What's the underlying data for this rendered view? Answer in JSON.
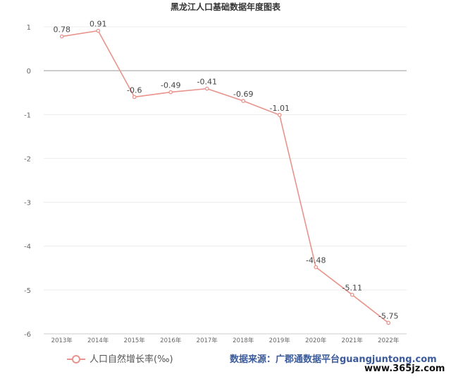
{
  "chart_data": {
    "type": "line",
    "title": "黑龙江人口基础数据年度图表",
    "categories": [
      "2013年",
      "2014年",
      "2015年",
      "2016年",
      "2017年",
      "2018年",
      "2019年",
      "2020年",
      "2021年",
      "2022年"
    ],
    "series": [
      {
        "name": "人口自然增长率(‰)",
        "values": [
          0.78,
          0.91,
          -0.6,
          -0.49,
          -0.41,
          -0.69,
          -1.01,
          -4.48,
          -5.11,
          -5.75
        ],
        "labels": [
          "0.78",
          "0.91",
          "-0.6",
          "-0.49",
          "-0.41",
          "-0.69",
          "-1.01",
          "-4.48",
          "-5.11",
          "-5.75"
        ],
        "color": "#e8948c"
      }
    ],
    "yticks": [
      "1",
      "0",
      "-1",
      "-2",
      "-3",
      "-4",
      "-5",
      "-6"
    ],
    "ylim": [
      -6,
      1
    ],
    "grid": true,
    "legend": "bottom-left"
  },
  "source": "数据来源：广郡通数据平台guangjuntong.com",
  "watermark": "www.365jz.com"
}
